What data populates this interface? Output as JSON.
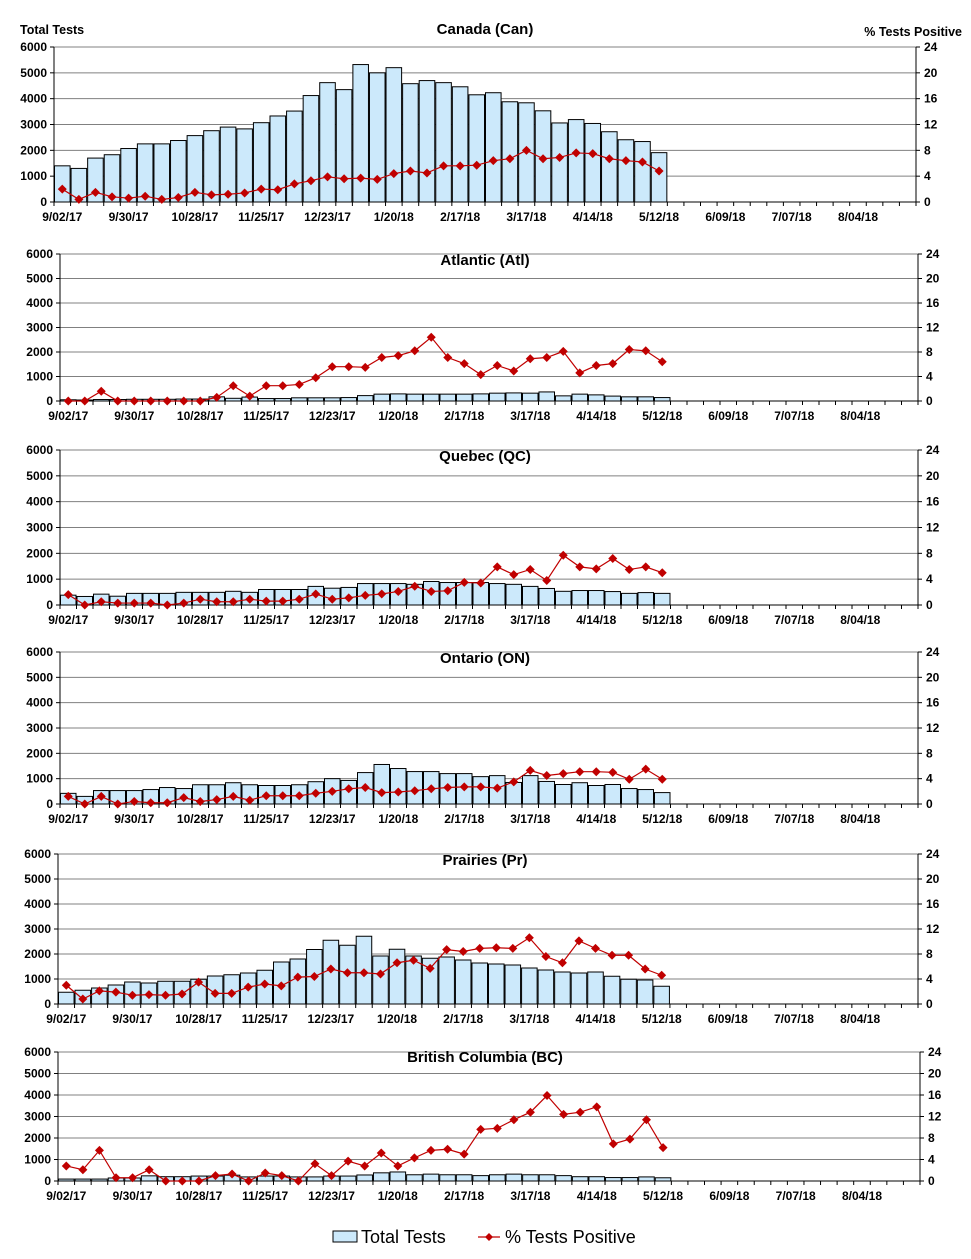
{
  "axis_titles": {
    "left": "Total Tests",
    "right": "% Tests Positive"
  },
  "legend": {
    "bars": "Total Tests",
    "line": "% Tests Positive",
    "bar_color": "#cce9fb",
    "line_color": "#c00000"
  },
  "chart_data": [
    {
      "type": "bar+line",
      "title": "Canada (Can)",
      "ylim_left": [
        0,
        6000
      ],
      "yticks_left": [
        "0",
        "1000",
        "2000",
        "3000",
        "4000",
        "5000",
        "6000"
      ],
      "ylim_right": [
        0,
        24
      ],
      "yticks_right": [
        "0",
        "4",
        "8",
        "12",
        "16",
        "20",
        "24"
      ],
      "x_tick_labels": [
        "9/02/17",
        "9/30/17",
        "10/28/17",
        "11/25/17",
        "12/23/17",
        "1/20/18",
        "2/17/18",
        "3/17/18",
        "4/14/18",
        "5/12/18",
        "6/09/18",
        "7/07/18",
        "8/04/18"
      ],
      "weeks_on_axis": 52,
      "series": [
        {
          "name": "Total Tests",
          "axis": "left",
          "values": [
            1400,
            1300,
            1700,
            1830,
            2070,
            2250,
            2250,
            2380,
            2570,
            2760,
            2900,
            2830,
            3070,
            3330,
            3520,
            4120,
            4620,
            4350,
            5320,
            5000,
            5200,
            4580,
            4700,
            4620,
            4460,
            4150,
            4230,
            3880,
            3840,
            3530,
            3060,
            3190,
            3040,
            2720,
            2410,
            2340,
            1910
          ]
        },
        {
          "name": "% Tests Positive",
          "axis": "right",
          "values": [
            2.0,
            0.4,
            1.5,
            0.8,
            0.6,
            0.9,
            0.4,
            0.7,
            1.5,
            1.1,
            1.2,
            1.4,
            2.0,
            1.9,
            2.8,
            3.3,
            3.9,
            3.6,
            3.7,
            3.5,
            4.4,
            4.8,
            4.5,
            5.6,
            5.6,
            5.7,
            6.4,
            6.7,
            8.0,
            6.7,
            6.9,
            7.6,
            7.5,
            6.7,
            6.4,
            6.2,
            4.8
          ]
        }
      ]
    },
    {
      "type": "bar+line",
      "title": "Atlantic (Atl)",
      "ylim_left": [
        0,
        6000
      ],
      "yticks_left": [
        "0",
        "1000",
        "2000",
        "3000",
        "4000",
        "5000",
        "6000"
      ],
      "ylim_right": [
        0,
        24
      ],
      "yticks_right": [
        "0",
        "4",
        "8",
        "12",
        "16",
        "20",
        "24"
      ],
      "x_tick_labels": [
        "9/02/17",
        "9/30/17",
        "10/28/17",
        "11/25/17",
        "12/23/17",
        "1/20/18",
        "2/17/18",
        "3/17/18",
        "4/14/18",
        "5/12/18",
        "6/09/18",
        "7/07/18",
        "8/04/18"
      ],
      "weeks_on_axis": 52,
      "series": [
        {
          "name": "Total Tests",
          "axis": "left",
          "values": [
            50,
            40,
            60,
            60,
            70,
            70,
            70,
            80,
            80,
            170,
            110,
            160,
            100,
            100,
            130,
            130,
            130,
            140,
            220,
            280,
            290,
            280,
            280,
            280,
            280,
            290,
            320,
            330,
            320,
            370,
            210,
            280,
            250,
            200,
            170,
            170,
            140
          ]
        },
        {
          "name": "% Tests Positive",
          "axis": "right",
          "values": [
            0,
            0,
            1.6,
            0,
            0,
            0,
            0,
            0,
            0,
            0.6,
            2.5,
            0.8,
            2.5,
            2.5,
            2.7,
            3.8,
            5.6,
            5.6,
            5.5,
            7.1,
            7.4,
            8.2,
            10.4,
            7.1,
            6.1,
            4.3,
            5.8,
            4.9,
            6.9,
            7.1,
            8.1,
            4.6,
            5.8,
            6.1,
            8.4,
            8.2,
            6.4
          ]
        }
      ]
    },
    {
      "type": "bar+line",
      "title": "Quebec (QC)",
      "ylim_left": [
        0,
        6000
      ],
      "yticks_left": [
        "0",
        "1000",
        "2000",
        "3000",
        "4000",
        "5000",
        "6000"
      ],
      "ylim_right": [
        0,
        24
      ],
      "yticks_right": [
        "0",
        "4",
        "8",
        "12",
        "16",
        "20",
        "24"
      ],
      "x_tick_labels": [
        "9/02/17",
        "9/30/17",
        "10/28/17",
        "11/25/17",
        "12/23/17",
        "1/20/18",
        "2/17/18",
        "3/17/18",
        "4/14/18",
        "5/12/18",
        "6/09/18",
        "7/07/18",
        "8/04/18"
      ],
      "weeks_on_axis": 52,
      "series": [
        {
          "name": "Total Tests",
          "axis": "left",
          "values": [
            380,
            330,
            420,
            340,
            450,
            450,
            450,
            490,
            490,
            490,
            530,
            490,
            600,
            600,
            600,
            720,
            650,
            680,
            830,
            830,
            830,
            800,
            910,
            870,
            870,
            870,
            830,
            800,
            720,
            640,
            530,
            560,
            560,
            520,
            450,
            480,
            450
          ]
        },
        {
          "name": "% Tests Positive",
          "axis": "right",
          "values": [
            1.6,
            0,
            0.5,
            0.3,
            0.3,
            0.3,
            0,
            0.3,
            0.9,
            0.5,
            0.5,
            0.9,
            0.6,
            0.6,
            0.9,
            1.7,
            0.9,
            1.1,
            1.5,
            1.7,
            2.1,
            2.9,
            2.1,
            2.2,
            3.5,
            3.4,
            5.9,
            4.7,
            5.5,
            3.8,
            7.7,
            5.9,
            5.6,
            7.2,
            5.5,
            5.9,
            5.0
          ]
        }
      ]
    },
    {
      "type": "bar+line",
      "title": "Ontario (ON)",
      "ylim_left": [
        0,
        6000
      ],
      "yticks_left": [
        "0",
        "1000",
        "2000",
        "3000",
        "4000",
        "5000",
        "6000"
      ],
      "ylim_right": [
        0,
        24
      ],
      "yticks_right": [
        "0",
        "4",
        "8",
        "12",
        "16",
        "20",
        "24"
      ],
      "x_tick_labels": [
        "9/02/17",
        "9/30/17",
        "10/28/17",
        "11/25/17",
        "12/23/17",
        "1/20/18",
        "2/17/18",
        "3/17/18",
        "4/14/18",
        "5/12/18",
        "6/09/18",
        "7/07/18",
        "8/04/18"
      ],
      "weeks_on_axis": 52,
      "series": [
        {
          "name": "Total Tests",
          "axis": "left",
          "values": [
            420,
            300,
            530,
            530,
            530,
            570,
            650,
            610,
            760,
            760,
            840,
            760,
            730,
            730,
            760,
            880,
            1000,
            930,
            1240,
            1560,
            1400,
            1280,
            1280,
            1200,
            1200,
            1080,
            1120,
            850,
            1120,
            890,
            770,
            840,
            730,
            770,
            610,
            570,
            450
          ]
        },
        {
          "name": "% Tests Positive",
          "axis": "right",
          "values": [
            1.2,
            0,
            1.2,
            0,
            0.4,
            0.2,
            0.2,
            1.0,
            0.4,
            0.7,
            1.2,
            0.6,
            1.3,
            1.3,
            1.3,
            1.7,
            2.0,
            2.4,
            2.6,
            1.8,
            1.9,
            2.1,
            2.4,
            2.6,
            2.7,
            2.7,
            2.5,
            3.5,
            5.3,
            4.5,
            4.8,
            5.1,
            5.1,
            5.0,
            3.9,
            5.5,
            3.9
          ]
        }
      ]
    },
    {
      "type": "bar+line",
      "title": "Prairies (Pr)",
      "ylim_left": [
        0,
        6000
      ],
      "yticks_left": [
        "0",
        "1000",
        "2000",
        "3000",
        "4000",
        "5000",
        "6000"
      ],
      "ylim_right": [
        0,
        24
      ],
      "yticks_right": [
        "0",
        "4",
        "8",
        "12",
        "16",
        "20",
        "24"
      ],
      "x_tick_labels": [
        "9/02/17",
        "9/30/17",
        "10/28/17",
        "11/25/17",
        "12/23/17",
        "1/20/18",
        "2/17/18",
        "3/17/18",
        "4/14/18",
        "5/12/18",
        "6/09/18",
        "7/07/18",
        "8/04/18"
      ],
      "weeks_on_axis": 52,
      "series": [
        {
          "name": "Total Tests",
          "axis": "left",
          "values": [
            470,
            550,
            640,
            760,
            880,
            840,
            910,
            910,
            990,
            1120,
            1170,
            1240,
            1350,
            1680,
            1800,
            2180,
            2550,
            2350,
            2710,
            1920,
            2190,
            1920,
            1830,
            1880,
            1760,
            1640,
            1600,
            1560,
            1440,
            1360,
            1280,
            1240,
            1280,
            1110,
            990,
            960,
            710
          ]
        },
        {
          "name": "% Tests Positive",
          "axis": "right",
          "values": [
            3.0,
            0.8,
            2.1,
            1.9,
            1.4,
            1.5,
            1.4,
            1.6,
            3.5,
            1.7,
            1.7,
            2.7,
            3.2,
            2.9,
            4.3,
            4.4,
            5.6,
            5.0,
            5.0,
            4.8,
            6.6,
            7.0,
            5.7,
            8.7,
            8.4,
            8.9,
            9.0,
            8.9,
            10.6,
            7.6,
            6.6,
            10.1,
            8.9,
            7.8,
            7.8,
            5.6,
            4.6
          ]
        }
      ]
    },
    {
      "type": "bar+line",
      "title": "British Columbia (BC)",
      "ylim_left": [
        0,
        6000
      ],
      "yticks_left": [
        "0",
        "1000",
        "2000",
        "3000",
        "4000",
        "5000",
        "6000"
      ],
      "ylim_right": [
        0,
        24
      ],
      "yticks_right": [
        "0",
        "4",
        "8",
        "12",
        "16",
        "20",
        "24"
      ],
      "x_tick_labels": [
        "9/02/17",
        "9/30/17",
        "10/28/17",
        "11/25/17",
        "12/23/17",
        "1/20/18",
        "2/17/18",
        "3/17/18",
        "4/14/18",
        "5/12/18",
        "6/09/18",
        "7/07/18",
        "8/04/18"
      ],
      "weeks_on_axis": 52,
      "series": [
        {
          "name": "Total Tests",
          "axis": "left",
          "values": [
            90,
            90,
            90,
            140,
            140,
            240,
            200,
            200,
            230,
            230,
            270,
            190,
            230,
            230,
            190,
            190,
            230,
            230,
            280,
            380,
            420,
            290,
            320,
            290,
            290,
            250,
            290,
            320,
            290,
            290,
            250,
            200,
            200,
            160,
            160,
            190,
            150
          ]
        },
        {
          "name": "% Tests Positive",
          "axis": "right",
          "values": [
            2.8,
            2.1,
            5.7,
            0.6,
            0.6,
            2.1,
            0,
            0,
            0,
            1.0,
            1.3,
            0,
            1.5,
            1.0,
            0,
            3.2,
            1.0,
            3.7,
            2.8,
            5.2,
            2.8,
            4.3,
            5.7,
            5.9,
            5.0,
            9.6,
            9.8,
            11.4,
            12.8,
            15.9,
            12.4,
            12.8,
            13.8,
            6.9,
            7.8,
            11.4,
            6.2
          ]
        }
      ]
    }
  ]
}
